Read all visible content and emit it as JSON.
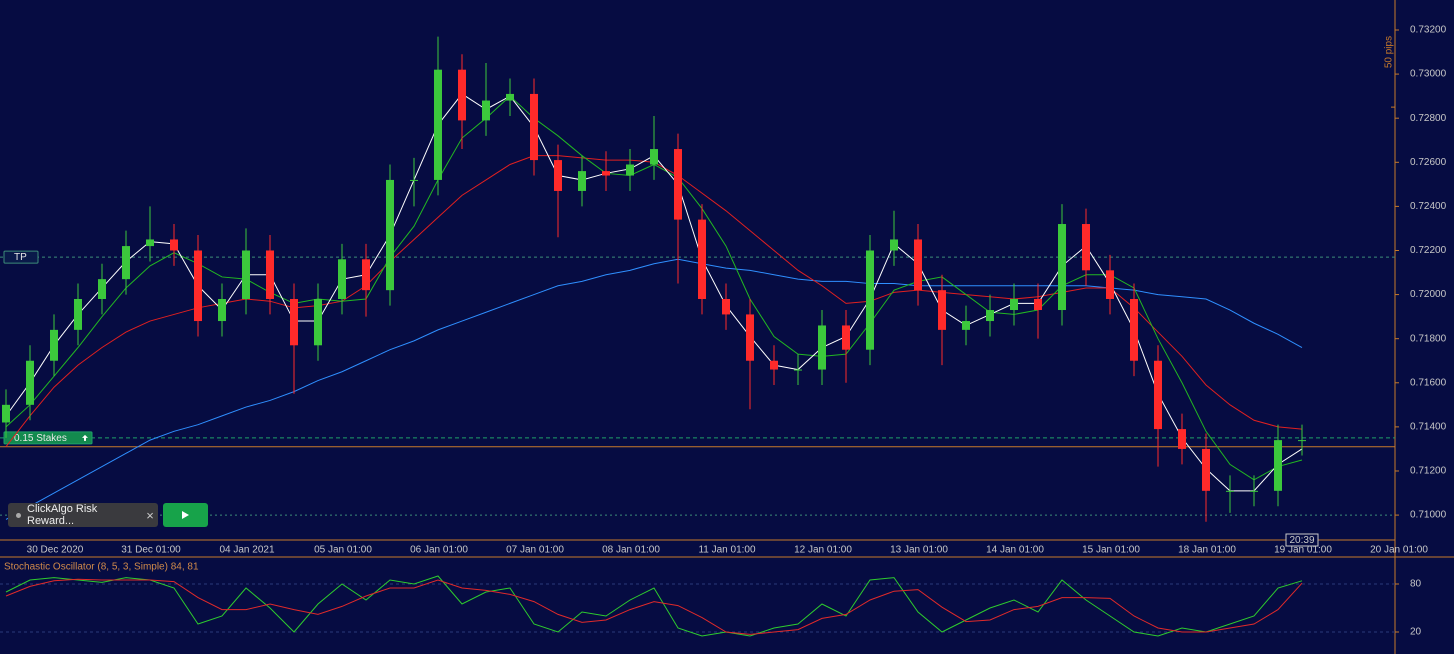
{
  "chart_data": [
    {
      "type": "candlestick",
      "ylim": [
        0.70887,
        0.73336
      ],
      "yticks": [
        {
          "value": 0.71,
          "label": "0.71000"
        },
        {
          "value": 0.712,
          "label": "0.71200"
        },
        {
          "value": 0.714,
          "label": "0.71400"
        },
        {
          "value": 0.716,
          "label": "0.71600"
        },
        {
          "value": 0.718,
          "label": "0.71800"
        },
        {
          "value": 0.72,
          "label": "0.72000"
        },
        {
          "value": 0.722,
          "label": "0.72200"
        },
        {
          "value": 0.724,
          "label": "0.72400"
        },
        {
          "value": 0.726,
          "label": "0.72600"
        },
        {
          "value": 0.728,
          "label": "0.72800"
        },
        {
          "value": 0.73,
          "label": "0.73000"
        },
        {
          "value": 0.732,
          "label": "0.73200"
        }
      ],
      "xtick_labels": [
        "30 Dec 2020",
        "31 Dec 01:00",
        "04 Jan 2021",
        "05 Jan 01:00",
        "06 Jan 01:00",
        "07 Jan 01:00",
        "08 Jan 01:00",
        "11 Jan 01:00",
        "12 Jan 01:00",
        "13 Jan 01:00",
        "14 Jan 01:00",
        "15 Jan 01:00",
        "18 Jan 01:00",
        "19 Jan 01:00",
        "20 Jan 01:00"
      ],
      "up_color": "#3cc83c",
      "down_color": "#ff2a2a",
      "open": [
        0.7142,
        0.715,
        0.717,
        0.7184,
        0.7198,
        0.7207,
        0.7222,
        0.7225,
        0.722,
        0.7188,
        0.7198,
        0.722,
        0.7198,
        0.7177,
        0.7198,
        0.7216,
        0.7202,
        0.7252,
        0.7252,
        0.7302,
        0.7279,
        0.7288,
        0.7291,
        0.7261,
        0.7247,
        0.7256,
        0.7254,
        0.7259,
        0.7266,
        0.7234,
        0.7198,
        0.7191,
        0.717,
        0.7166,
        0.7166,
        0.7186,
        0.7175,
        0.722,
        0.7225,
        0.7202,
        0.7184,
        0.7188,
        0.7193,
        0.7198,
        0.7193,
        0.7232,
        0.7211,
        0.7198,
        0.717,
        0.7139,
        0.713,
        0.7111,
        0.7111,
        0.7111,
        0.7134
      ],
      "high": [
        0.7157,
        0.7177,
        0.7191,
        0.7205,
        0.7214,
        0.7229,
        0.724,
        0.7232,
        0.7227,
        0.7205,
        0.723,
        0.7227,
        0.7205,
        0.7205,
        0.7223,
        0.7223,
        0.7259,
        0.7262,
        0.7317,
        0.7309,
        0.7305,
        0.7298,
        0.7298,
        0.7268,
        0.7263,
        0.7265,
        0.7266,
        0.7281,
        0.7273,
        0.7241,
        0.7205,
        0.7198,
        0.7177,
        0.7173,
        0.7193,
        0.7193,
        0.7227,
        0.7238,
        0.7232,
        0.7209,
        0.7195,
        0.72,
        0.7205,
        0.7205,
        0.7241,
        0.7239,
        0.7218,
        0.7205,
        0.7177,
        0.7146,
        0.7137,
        0.7118,
        0.7118,
        0.7141,
        0.7141
      ],
      "low": [
        0.7135,
        0.7143,
        0.7163,
        0.7177,
        0.7191,
        0.72,
        0.7215,
        0.7213,
        0.7181,
        0.7181,
        0.7191,
        0.7191,
        0.7155,
        0.717,
        0.7191,
        0.719,
        0.7195,
        0.724,
        0.7245,
        0.7266,
        0.7272,
        0.7281,
        0.7254,
        0.7226,
        0.724,
        0.7247,
        0.7247,
        0.7252,
        0.7205,
        0.7191,
        0.7184,
        0.7148,
        0.7159,
        0.7159,
        0.7159,
        0.716,
        0.7168,
        0.7213,
        0.7195,
        0.7168,
        0.7177,
        0.7181,
        0.7186,
        0.718,
        0.7186,
        0.7204,
        0.7191,
        0.7163,
        0.7122,
        0.7123,
        0.7097,
        0.7101,
        0.7104,
        0.7104,
        0.7127
      ],
      "close": [
        0.715,
        0.717,
        0.7184,
        0.7198,
        0.7207,
        0.7222,
        0.7225,
        0.722,
        0.7188,
        0.7198,
        0.722,
        0.7198,
        0.7177,
        0.7198,
        0.7216,
        0.7202,
        0.7252,
        0.7252,
        0.7302,
        0.7279,
        0.7288,
        0.7291,
        0.7261,
        0.7247,
        0.7256,
        0.7254,
        0.7259,
        0.7266,
        0.7234,
        0.7198,
        0.7191,
        0.717,
        0.7166,
        0.7166,
        0.7186,
        0.7175,
        0.722,
        0.7225,
        0.7202,
        0.7184,
        0.7188,
        0.7193,
        0.7198,
        0.7193,
        0.7232,
        0.7211,
        0.7198,
        0.717,
        0.7139,
        0.713,
        0.7111,
        0.7111,
        0.7111,
        0.7134,
        0.7134
      ],
      "lines": [
        {
          "color": "#2f8fff",
          "values": [
            0.7098,
            0.7104,
            0.711,
            0.7116,
            0.7122,
            0.7128,
            0.7134,
            0.7138,
            0.7141,
            0.7145,
            0.7149,
            0.7152,
            0.7156,
            0.7161,
            0.7165,
            0.717,
            0.7175,
            0.7179,
            0.7184,
            0.7188,
            0.7192,
            0.7196,
            0.72,
            0.7204,
            0.7206,
            0.7209,
            0.7211,
            0.7214,
            0.7216,
            0.7214,
            0.7212,
            0.7211,
            0.7209,
            0.7207,
            0.7206,
            0.7206,
            0.7205,
            0.7205,
            0.7204,
            0.7204,
            0.7204,
            0.7204,
            0.7204,
            0.7204,
            0.7204,
            0.7204,
            0.7203,
            0.7202,
            0.72,
            0.7199,
            0.7198,
            0.7193,
            0.7187,
            0.7182,
            0.7176
          ]
        },
        {
          "color": "#e02020",
          "values": [
            0.7131,
            0.7145,
            0.7158,
            0.7168,
            0.7176,
            0.7183,
            0.7188,
            0.7191,
            0.7194,
            0.7196,
            0.7198,
            0.7197,
            0.7194,
            0.7195,
            0.7197,
            0.7204,
            0.7215,
            0.7225,
            0.7235,
            0.7245,
            0.7252,
            0.7259,
            0.7263,
            0.7263,
            0.7262,
            0.7261,
            0.7261,
            0.726,
            0.7254,
            0.7246,
            0.7238,
            0.7229,
            0.722,
            0.7211,
            0.7204,
            0.7196,
            0.7197,
            0.7201,
            0.7202,
            0.7201,
            0.72,
            0.7199,
            0.7198,
            0.7199,
            0.7201,
            0.7203,
            0.7203,
            0.7194,
            0.7183,
            0.7172,
            0.7159,
            0.715,
            0.7143,
            0.714,
            0.7139
          ]
        },
        {
          "color": "#22b822",
          "values": [
            0.714,
            0.715,
            0.7163,
            0.7176,
            0.719,
            0.7203,
            0.7213,
            0.7219,
            0.7214,
            0.7208,
            0.7207,
            0.7201,
            0.7196,
            0.7198,
            0.7197,
            0.7198,
            0.7217,
            0.7231,
            0.7252,
            0.7271,
            0.728,
            0.729,
            0.728,
            0.7272,
            0.7263,
            0.7255,
            0.7254,
            0.7259,
            0.7253,
            0.7239,
            0.7222,
            0.7198,
            0.7181,
            0.7173,
            0.7172,
            0.7173,
            0.7187,
            0.7202,
            0.7206,
            0.7208,
            0.72,
            0.7192,
            0.7191,
            0.7193,
            0.7204,
            0.7209,
            0.7209,
            0.7203,
            0.718,
            0.716,
            0.7138,
            0.7123,
            0.7116,
            0.7122,
            0.7125
          ]
        },
        {
          "color": "#ffffff",
          "values": [
            0.7145,
            0.716,
            0.7177,
            0.7191,
            0.7203,
            0.7215,
            0.7224,
            0.7223,
            0.7204,
            0.7193,
            0.7209,
            0.7209,
            0.7188,
            0.7188,
            0.7207,
            0.7209,
            0.7227,
            0.7252,
            0.7277,
            0.7291,
            0.7284,
            0.729,
            0.7276,
            0.7254,
            0.7252,
            0.7255,
            0.7257,
            0.7263,
            0.725,
            0.7216,
            0.7195,
            0.7181,
            0.7168,
            0.7166,
            0.7176,
            0.7181,
            0.7198,
            0.7223,
            0.7214,
            0.7193,
            0.7186,
            0.7191,
            0.7196,
            0.7196,
            0.7213,
            0.7222,
            0.7205,
            0.7184,
            0.7155,
            0.7135,
            0.7121,
            0.7111,
            0.7111,
            0.7123,
            0.713
          ]
        }
      ],
      "levels": [
        {
          "value": 0.7217,
          "color": "#3c8c78",
          "dash": "3,3",
          "label": "TP",
          "label_fill": "#0a1a4a"
        },
        {
          "value": 0.7135,
          "color": "#1fa06a",
          "dash": "4,3",
          "label": "0.15 Stakes",
          "label_fill": "#138a4e"
        },
        {
          "value": 0.7131,
          "color": "#c77a2a",
          "dash": "none"
        },
        {
          "value": 0.71,
          "color": "#3c8c78",
          "dash": "2,3"
        }
      ],
      "ruler_label": "50 pips",
      "ruler": [
        0.7285,
        0.7335
      ],
      "time_label": "20:39"
    },
    {
      "type": "line",
      "title": "Stochastic Oscillator (8, 5, 3, Simple) 84, 81",
      "ylim": [
        -7.5,
        112.5
      ],
      "yticks": [
        20,
        80
      ],
      "grid": true,
      "series": [
        {
          "color": "#2ecc2e",
          "values": [
            70,
            85,
            88,
            85,
            82,
            88,
            85,
            75,
            30,
            40,
            75,
            50,
            20,
            55,
            80,
            60,
            85,
            80,
            90,
            55,
            70,
            75,
            30,
            20,
            45,
            40,
            60,
            75,
            25,
            15,
            20,
            15,
            25,
            30,
            55,
            40,
            85,
            88,
            45,
            20,
            35,
            50,
            60,
            45,
            85,
            60,
            40,
            20,
            15,
            25,
            20,
            30,
            40,
            75,
            84
          ]
        },
        {
          "color": "#e02a2a",
          "values": [
            65,
            77,
            84,
            86,
            85,
            85,
            85,
            83,
            63,
            48,
            48,
            55,
            48,
            42,
            52,
            65,
            75,
            75,
            85,
            75,
            72,
            67,
            58,
            42,
            32,
            35,
            48,
            58,
            53,
            38,
            20,
            17,
            20,
            23,
            37,
            42,
            60,
            71,
            73,
            51,
            33,
            35,
            48,
            52,
            63,
            63,
            62,
            40,
            25,
            20,
            20,
            25,
            30,
            48,
            81
          ]
        }
      ]
    }
  ],
  "widget": {
    "title": "ClickAlgo Risk Reward...",
    "close": "×"
  }
}
